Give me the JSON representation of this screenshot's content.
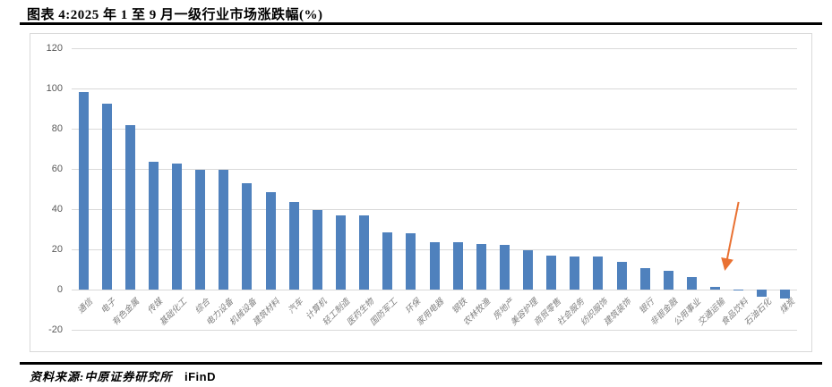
{
  "header": {
    "title": "图表 4:2025 年 1 至 9 月一级行业市场涨跌幅(%)"
  },
  "footer": {
    "source_label": "资料来源:中原证券研究所",
    "source_brand": "iFinD"
  },
  "chart_data": {
    "type": "bar",
    "title": "2025年1至9月一级行业市场涨跌幅(%)",
    "categories": [
      "通信",
      "电子",
      "有色金属",
      "传媒",
      "基础化工",
      "综合",
      "电力设备",
      "机械设备",
      "建筑材料",
      "汽车",
      "计算机",
      "轻工制造",
      "医药生物",
      "国防军工",
      "环保",
      "家用电器",
      "钢铁",
      "农林牧渔",
      "房地产",
      "美容护理",
      "商贸零售",
      "社会服务",
      "纺织服饰",
      "建筑装饰",
      "银行",
      "非银金融",
      "公用事业",
      "交通运输",
      "食品饮料",
      "石油石化",
      "煤炭"
    ],
    "values": [
      98.2,
      92.5,
      81.8,
      63.6,
      62.5,
      59.6,
      59.6,
      53.0,
      48.5,
      43.5,
      39.6,
      36.7,
      36.7,
      28.6,
      27.8,
      23.7,
      23.7,
      22.7,
      22.4,
      19.5,
      17.1,
      16.3,
      16.3,
      13.6,
      10.7,
      9.5,
      6.2,
      1.5,
      -0.6,
      -3.7,
      -4.3
    ],
    "xlabel": "",
    "ylabel": "",
    "ylim": [
      -20,
      120
    ],
    "ytick_interval": 20,
    "grid": true,
    "legend": false,
    "bar_color": "#4f81bd",
    "grid_color": "#d9d9d9",
    "axis_tick_color": "#595959",
    "category_label_color": "#808080",
    "annotation": {
      "shape": "arrow",
      "color": "#e97132",
      "target_category": "食品饮料",
      "tail_value": 43.6,
      "tip_value": 10.2,
      "tip_x_offset": -15
    }
  }
}
